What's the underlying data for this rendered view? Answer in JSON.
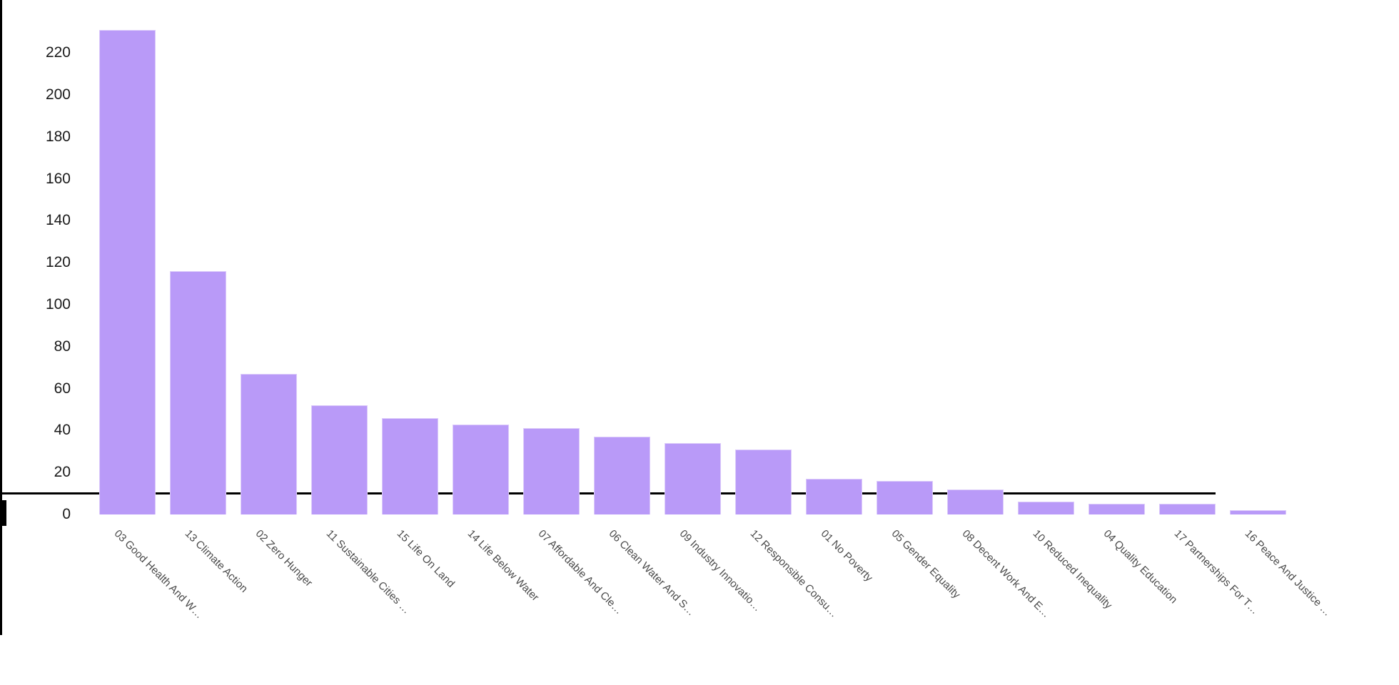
{
  "page": {
    "background": "#ffffff",
    "title": ""
  },
  "chart_data": {
    "type": "bar",
    "title": "",
    "xlabel": "",
    "ylabel": "",
    "categories": [
      "03 Good Health And W…",
      "13 Climate Action",
      "02 Zero Hunger",
      "11 Sustainable Cities …",
      "15 Life On Land",
      "14 Life Below Water",
      "07 Affordable And Cle…",
      "06 Clean Water And S…",
      "09 Industry Innovatio…",
      "12 Responsible Consu…",
      "01 No Poverty",
      "05 Gender Equality",
      "08 Decent Work And E…",
      "10 Reduced Inequality",
      "04 Quality Education",
      "17 Partnerships For T…",
      "16 Peace And Justice …"
    ],
    "values": [
      231,
      116,
      67,
      52,
      46,
      43,
      41,
      37,
      34,
      31,
      17,
      16,
      12,
      6,
      5,
      5,
      2
    ],
    "y_tick_labels": [
      "0",
      "20",
      "40",
      "60",
      "80",
      "100",
      "120",
      "140",
      "160",
      "180",
      "200",
      "220"
    ],
    "y_tick_values": [
      0,
      20,
      40,
      60,
      80,
      100,
      120,
      140,
      160,
      180,
      200,
      220
    ],
    "ylim": [
      0,
      232
    ],
    "grid": "off",
    "legend": "none",
    "x_label_rotation_deg": 45,
    "colors": {
      "bar_fill": "#b99af8",
      "bar_edge": "#dccbfa",
      "axis": "#000000",
      "y_tick_label": "#1a1a1a",
      "x_tick_label": "#4a4a4a"
    }
  }
}
